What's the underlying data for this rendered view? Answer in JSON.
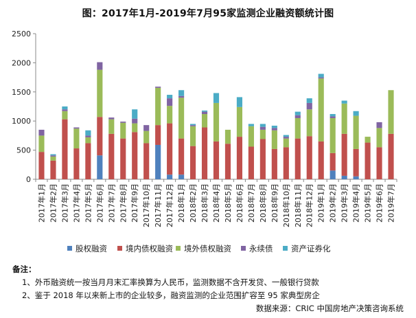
{
  "title": "图：2017年1月-2019年7月95家监测企业融资额统计图",
  "colors": {
    "股权融资": "#4f81bd",
    "境内债权融资": "#c0504d",
    "境外债权融资": "#9bbb59",
    "永续债": "#8064a2",
    "资产证券化": "#4bacc6"
  },
  "chart_data": {
    "type": "bar",
    "stacked": true,
    "title": "图：2017年1月-2019年7月95家监测企业融资额统计图",
    "xlabel": "",
    "ylabel": "",
    "ylim": [
      0,
      2500
    ],
    "yticks": [
      0,
      500,
      1000,
      1500,
      2000,
      2500
    ],
    "grid": false,
    "legend_position": "bottom",
    "categories": [
      "2017年1月",
      "2017年2月",
      "2017年3月",
      "2017年4月",
      "2017年5月",
      "2017年6月",
      "2017年7月",
      "2017年8月",
      "2017年9月",
      "2017年10月",
      "2017年11月",
      "2017年12月",
      "2018年1月",
      "2018年2月",
      "2018年3月",
      "2018年4月",
      "2018年5月",
      "2018年6月",
      "2018年7月",
      "2018年8月",
      "2018年9月",
      "2018年10月",
      "2018年11月",
      "2018年12月",
      "2019年1月",
      "2019年2月",
      "2019年3月",
      "2019年4月",
      "2019年5月",
      "2019年6月",
      "2019年7月"
    ],
    "series": [
      {
        "name": "股权融资",
        "values": [
          0,
          0,
          0,
          0,
          0,
          410,
          0,
          0,
          0,
          0,
          590,
          80,
          80,
          0,
          0,
          0,
          0,
          0,
          0,
          0,
          0,
          0,
          0,
          0,
          0,
          150,
          60,
          50,
          0,
          0,
          0
        ]
      },
      {
        "name": "境内债权融资",
        "values": [
          470,
          320,
          1030,
          530,
          620,
          660,
          780,
          700,
          810,
          620,
          340,
          880,
          620,
          570,
          890,
          650,
          610,
          730,
          560,
          690,
          520,
          550,
          700,
          740,
          650,
          300,
          720,
          470,
          630,
          550,
          780
        ]
      },
      {
        "name": "境外债权融资",
        "values": [
          280,
          70,
          140,
          340,
          100,
          810,
          250,
          270,
          150,
          210,
          640,
          300,
          700,
          340,
          230,
          660,
          240,
          510,
          350,
          160,
          320,
          150,
          350,
          460,
          1080,
          600,
          520,
          570,
          100,
          330,
          750
        ]
      },
      {
        "name": "永续债",
        "values": [
          100,
          20,
          30,
          20,
          30,
          130,
          30,
          20,
          80,
          100,
          20,
          130,
          30,
          20,
          40,
          0,
          0,
          0,
          0,
          50,
          40,
          30,
          50,
          110,
          20,
          30,
          0,
          0,
          0,
          100,
          0
        ]
      },
      {
        "name": "资产证券化",
        "values": [
          0,
          20,
          50,
          0,
          90,
          0,
          0,
          0,
          160,
          0,
          0,
          60,
          100,
          20,
          20,
          170,
          0,
          170,
          40,
          50,
          40,
          30,
          60,
          80,
          60,
          40,
          50,
          80,
          0,
          0,
          0
        ]
      }
    ]
  },
  "notes": {
    "heading": "备注：",
    "items": [
      "1、外币融资统一按当月月末汇率换算为人民币，监测数据不含开发贷、一般银行贷款",
      "2、鉴于 2018 年以来新上市的企业较多，融资监测的企业范围扩容至 95 家典型房企"
    ],
    "source": "数据来源：CRIC 中国房地产决策咨询系统"
  }
}
